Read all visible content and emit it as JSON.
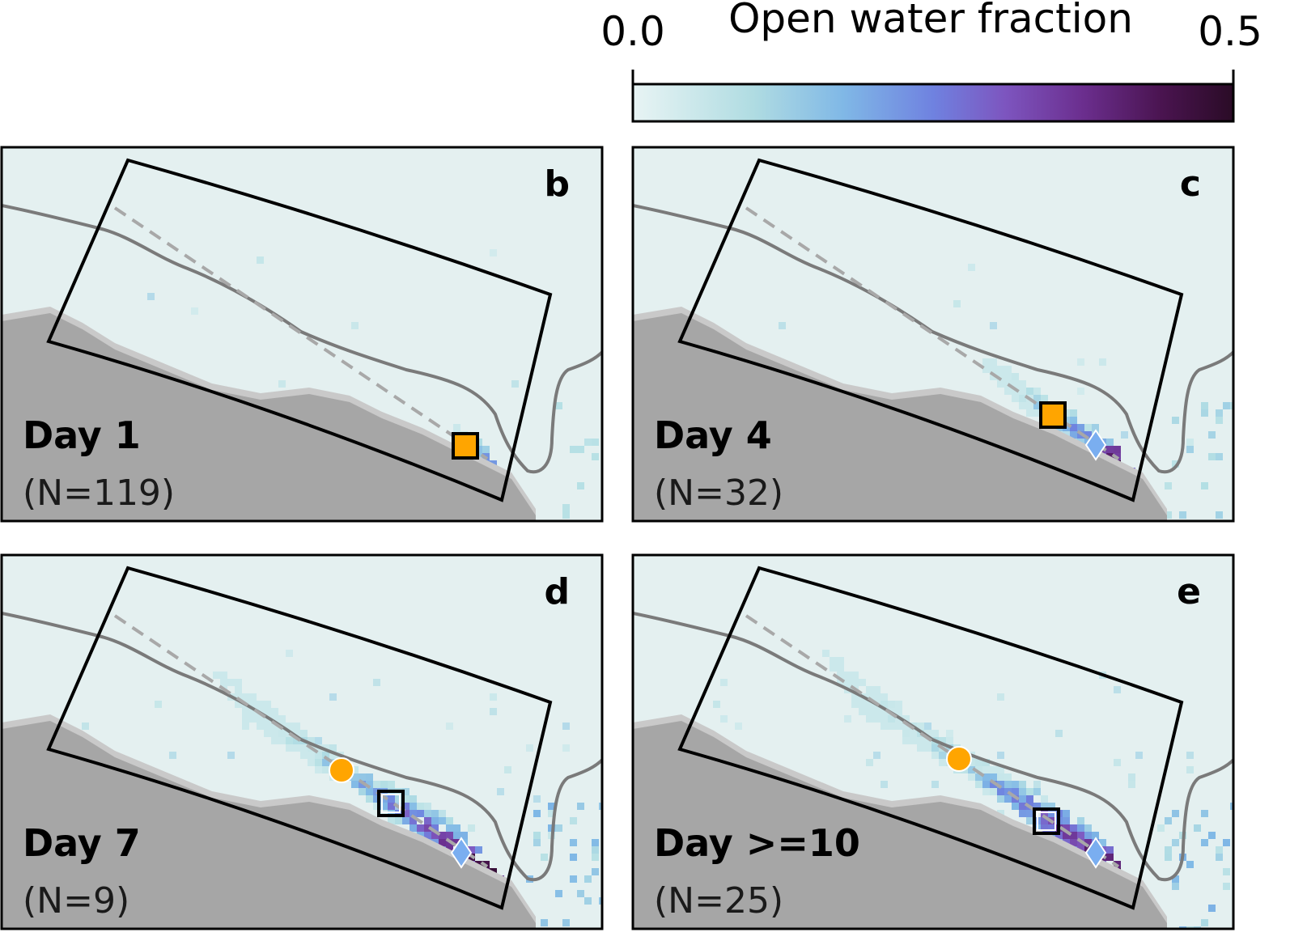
{
  "colorbar": {
    "title": "Open water fraction",
    "min_label": "0.0",
    "max_label": "0.5",
    "range": [
      0.0,
      0.5
    ],
    "colormap": [
      "#e8f4f4",
      "#b4dfe4",
      "#7fb8e6",
      "#6e84e0",
      "#7f58c0",
      "#6a2f8e",
      "#4a1450",
      "#2a0b26"
    ]
  },
  "colors": {
    "ocean_background": "#e4f0f0",
    "land": "#a6a6a6",
    "land_edge": "#c9c9c9",
    "coastline": "#7a7a7a",
    "domain_outline": "#000000",
    "transect": "#a8a8a8",
    "origin_marker": "#ffa500",
    "endpoint_marker": "#7aaef0",
    "mean_marker_outline": "#000000"
  },
  "panels": [
    {
      "letter": "b",
      "day_label": "Day 1",
      "n_label": "(N=119)",
      "origin_marker": "square",
      "plume_extent": 0.08,
      "plume_intensity": 0.55
    },
    {
      "letter": "c",
      "day_label": "Day 4",
      "n_label": "(N=32)",
      "origin_marker": "square",
      "plume_extent": 0.35,
      "plume_intensity": 0.9
    },
    {
      "letter": "d",
      "day_label": "Day 7",
      "n_label": "(N=9)",
      "origin_marker": "circle",
      "plume_extent": 0.7,
      "plume_intensity": 1.0
    },
    {
      "letter": "e",
      "day_label": "Day >=10",
      "n_label": "(N=25)",
      "origin_marker": "circle",
      "plume_extent": 0.75,
      "plume_intensity": 1.0
    }
  ]
}
